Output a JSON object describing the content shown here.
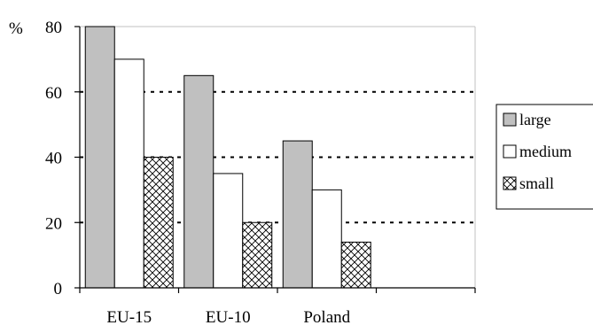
{
  "chart_data": {
    "type": "bar",
    "unit_label": "%",
    "categories": [
      "EU-15",
      "EU-10",
      "Poland"
    ],
    "series": [
      {
        "name": "large",
        "values": [
          80,
          65,
          45
        ],
        "fill": "#c0c0c0",
        "pattern": "solid"
      },
      {
        "name": "medium",
        "values": [
          70,
          35,
          30
        ],
        "fill": "#ffffff",
        "pattern": "solid"
      },
      {
        "name": "small",
        "values": [
          40,
          20,
          14
        ],
        "fill": "#ffffff",
        "pattern": "crosshatch"
      }
    ],
    "ylim": [
      0,
      80
    ],
    "yticks": [
      0,
      20,
      40,
      60,
      80
    ],
    "gridlines": "dashed",
    "legend_position": "right",
    "empty_category_slots": 1
  }
}
